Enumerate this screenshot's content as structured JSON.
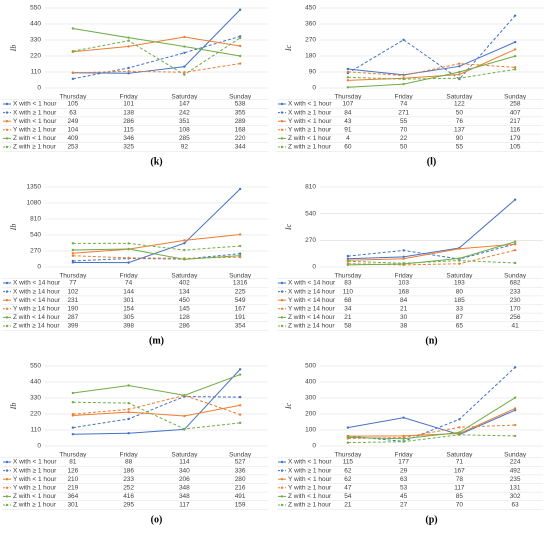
{
  "chart_data": [
    {
      "type": "line",
      "label": "(k)",
      "ylabel": "Ib",
      "categories": [
        "Thursday",
        "Friday",
        "Saturday",
        "Sunday"
      ],
      "ylim": [
        0,
        550
      ],
      "yticks": [
        0,
        110,
        220,
        330,
        440,
        550
      ],
      "grid": true,
      "series": [
        {
          "name": "X with < 1 hour",
          "color": "#4472c4",
          "dashed": false,
          "values": [
            105,
            101,
            147,
            538
          ]
        },
        {
          "name": "X with ≥ 1 hour",
          "color": "#4472c4",
          "dashed": true,
          "values": [
            63,
            138,
            242,
            355
          ]
        },
        {
          "name": "Y with < 1 hour",
          "color": "#ed7d31",
          "dashed": false,
          "values": [
            249,
            286,
            351,
            289
          ]
        },
        {
          "name": "Y with ≥ 1 hour",
          "color": "#ed7d31",
          "dashed": true,
          "values": [
            104,
            115,
            108,
            168
          ]
        },
        {
          "name": "Z with < 1 hour",
          "color": "#70ad47",
          "dashed": false,
          "values": [
            409,
            346,
            285,
            220
          ]
        },
        {
          "name": "Z with ≥ 1 hour",
          "color": "#70ad47",
          "dashed": true,
          "values": [
            253,
            325,
            92,
            344
          ]
        }
      ]
    },
    {
      "type": "line",
      "label": "(l)",
      "ylabel": "Ic",
      "categories": [
        "Thursday",
        "Friday",
        "Saturday",
        "Sunday"
      ],
      "ylim": [
        0,
        450
      ],
      "yticks": [
        0,
        90,
        180,
        270,
        360,
        450
      ],
      "grid": true,
      "series": [
        {
          "name": "X with < 1 hour",
          "color": "#4472c4",
          "dashed": false,
          "values": [
            107,
            74,
            122,
            258
          ]
        },
        {
          "name": "X with ≥ 1 hour",
          "color": "#4472c4",
          "dashed": true,
          "values": [
            84,
            271,
            50,
            407
          ]
        },
        {
          "name": "Y with < 1 hour",
          "color": "#ed7d31",
          "dashed": false,
          "values": [
            43,
            55,
            76,
            217
          ]
        },
        {
          "name": "Y with ≥ 1 hour",
          "color": "#ed7d31",
          "dashed": true,
          "values": [
            91,
            70,
            137,
            116
          ]
        },
        {
          "name": "Z with < 1 hour",
          "color": "#70ad47",
          "dashed": false,
          "values": [
            4,
            22,
            90,
            179
          ]
        },
        {
          "name": "Z with ≥ 1 hour",
          "color": "#70ad47",
          "dashed": true,
          "values": [
            60,
            50,
            55,
            105
          ]
        }
      ]
    },
    {
      "type": "line",
      "label": "(m)",
      "ylabel": "Ib",
      "categories": [
        "Thursday",
        "Friday",
        "Saturday",
        "Sunday"
      ],
      "ylim": [
        0,
        1350
      ],
      "yticks": [
        0,
        270,
        540,
        810,
        1080,
        1350
      ],
      "grid": true,
      "series": [
        {
          "name": "X with < 14 hour",
          "color": "#4472c4",
          "dashed": false,
          "values": [
            77,
            74,
            402,
            1316
          ]
        },
        {
          "name": "X with ≥ 14 hour",
          "color": "#4472c4",
          "dashed": true,
          "values": [
            102,
            144,
            134,
            225
          ]
        },
        {
          "name": "Y with < 14 hour",
          "color": "#ed7d31",
          "dashed": false,
          "values": [
            231,
            301,
            450,
            549
          ]
        },
        {
          "name": "Y with ≥ 14 hour",
          "color": "#ed7d31",
          "dashed": true,
          "values": [
            190,
            154,
            145,
            167
          ]
        },
        {
          "name": "Z with < 14 hour",
          "color": "#70ad47",
          "dashed": false,
          "values": [
            287,
            305,
            128,
            191
          ]
        },
        {
          "name": "Z with ≥ 14 hour",
          "color": "#70ad47",
          "dashed": true,
          "values": [
            399,
            398,
            286,
            354
          ]
        }
      ]
    },
    {
      "type": "line",
      "label": "(n)",
      "ylabel": "Ic",
      "categories": [
        "Thursday",
        "Friday",
        "Saturday",
        "Sunday"
      ],
      "ylim": [
        0,
        810
      ],
      "yticks": [
        0,
        270,
        540,
        810
      ],
      "grid": true,
      "series": [
        {
          "name": "X with < 14 hour",
          "color": "#4472c4",
          "dashed": false,
          "values": [
            83,
            103,
            193,
            682
          ]
        },
        {
          "name": "X with ≥ 14 hour",
          "color": "#4472c4",
          "dashed": true,
          "values": [
            110,
            168,
            80,
            233
          ]
        },
        {
          "name": "Y with < 14 hour",
          "color": "#ed7d31",
          "dashed": false,
          "values": [
            68,
            84,
            185,
            230
          ]
        },
        {
          "name": "Y with ≥ 14 hour",
          "color": "#ed7d31",
          "dashed": true,
          "values": [
            34,
            21,
            33,
            170
          ]
        },
        {
          "name": "Z with < 14 hour",
          "color": "#70ad47",
          "dashed": false,
          "values": [
            21,
            30,
            87,
            256
          ]
        },
        {
          "name": "Z with ≥ 14 hour",
          "color": "#70ad47",
          "dashed": true,
          "values": [
            58,
            38,
            65,
            41
          ]
        }
      ]
    },
    {
      "type": "line",
      "label": "(o)",
      "ylabel": "Ib",
      "categories": [
        "Thursday",
        "Friday",
        "Saturday",
        "Sunday"
      ],
      "ylim": [
        0,
        550
      ],
      "yticks": [
        0,
        110,
        220,
        330,
        440,
        550
      ],
      "grid": true,
      "series": [
        {
          "name": "X with < 1 hour",
          "color": "#4472c4",
          "dashed": false,
          "values": [
            81,
            88,
            114,
            527
          ]
        },
        {
          "name": "X with ≥ 1 hour",
          "color": "#4472c4",
          "dashed": true,
          "values": [
            126,
            186,
            340,
            336
          ]
        },
        {
          "name": "Y with < 1 hour",
          "color": "#ed7d31",
          "dashed": false,
          "values": [
            210,
            233,
            206,
            280
          ]
        },
        {
          "name": "Y with ≥ 1 hour",
          "color": "#ed7d31",
          "dashed": true,
          "values": [
            219,
            252,
            348,
            216
          ]
        },
        {
          "name": "Z with < 1 hour",
          "color": "#70ad47",
          "dashed": false,
          "values": [
            364,
            416,
            348,
            491
          ]
        },
        {
          "name": "Z with ≥ 1 hour",
          "color": "#70ad47",
          "dashed": true,
          "values": [
            301,
            295,
            117,
            159
          ]
        }
      ]
    },
    {
      "type": "line",
      "label": "(p)",
      "ylabel": "Ic",
      "categories": [
        "Thursday",
        "Friday",
        "Saturday",
        "Sunday"
      ],
      "ylim": [
        0,
        500
      ],
      "yticks": [
        0,
        100,
        200,
        300,
        400,
        500
      ],
      "grid": true,
      "series": [
        {
          "name": "X with < 1 hour",
          "color": "#4472c4",
          "dashed": false,
          "values": [
            115,
            177,
            71,
            224
          ]
        },
        {
          "name": "X with ≥ 1 hour",
          "color": "#4472c4",
          "dashed": true,
          "values": [
            62,
            29,
            167,
            492
          ]
        },
        {
          "name": "Y with < 1 hour",
          "color": "#ed7d31",
          "dashed": false,
          "values": [
            62,
            63,
            78,
            235
          ]
        },
        {
          "name": "Y with ≥ 1 hour",
          "color": "#ed7d31",
          "dashed": true,
          "values": [
            47,
            53,
            117,
            131
          ]
        },
        {
          "name": "Z with < 1 hour",
          "color": "#70ad47",
          "dashed": false,
          "values": [
            54,
            45,
            85,
            302
          ]
        },
        {
          "name": "Z with ≥ 1 hour",
          "color": "#70ad47",
          "dashed": true,
          "values": [
            21,
            27,
            70,
            63
          ]
        }
      ]
    }
  ]
}
